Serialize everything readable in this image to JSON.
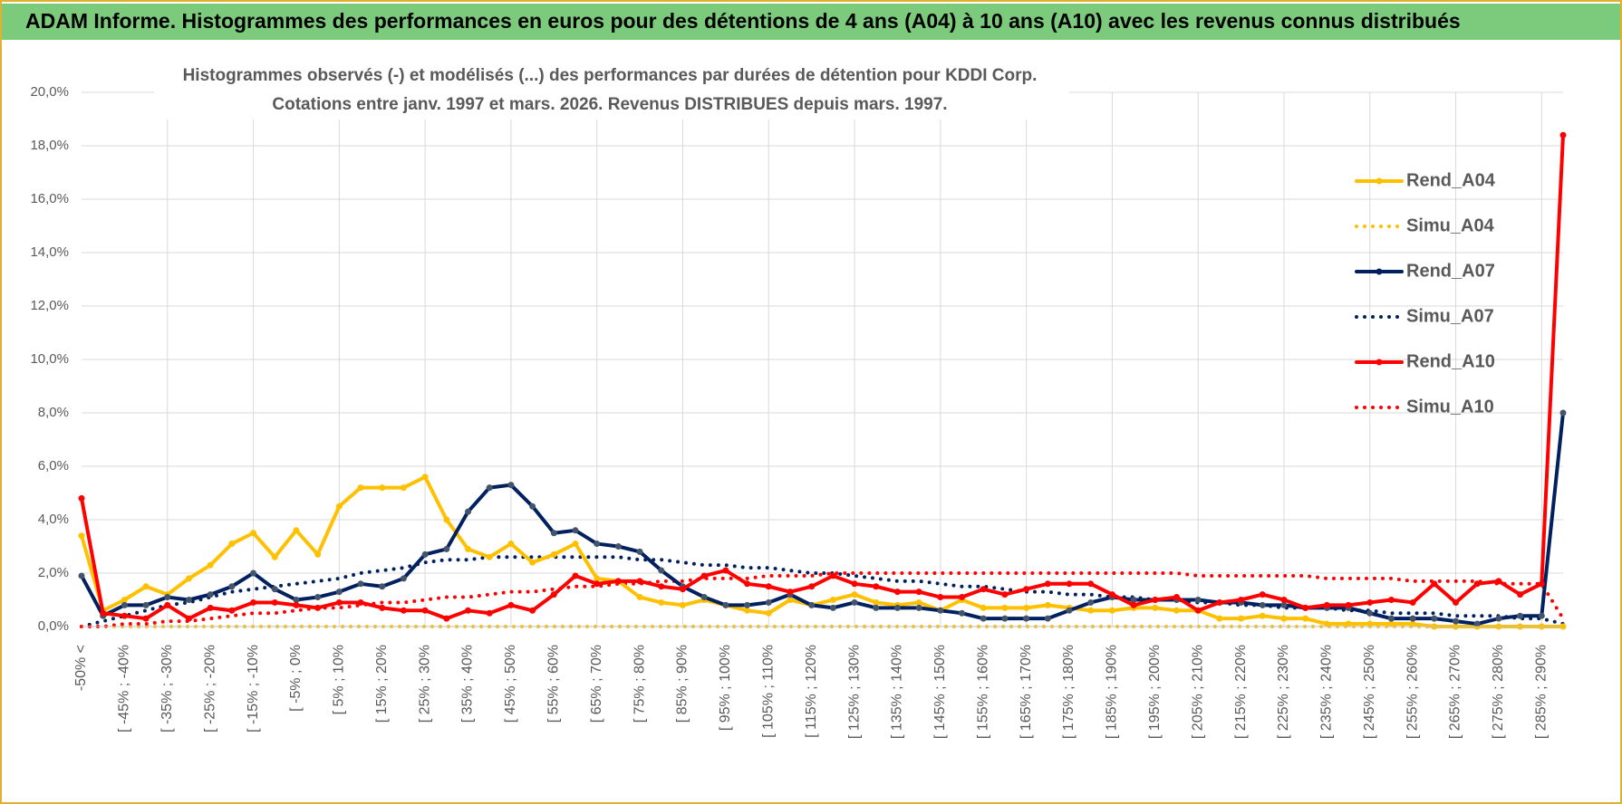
{
  "header": {
    "title": "ADAM Informe. Histogrammes des performances en euros pour des détentions de 4 ans (A04) à 10 ans (A10) avec les revenus connus distribués"
  },
  "chart_data": {
    "type": "line",
    "title": "Histogrammes observés (-) et modélisés (...) des performances par durées de détention pour KDDI Corp.",
    "subtitle": "Cotations entre janv. 1997 et mars. 2026. Revenus DISTRIBUES depuis mars. 1997.",
    "categories": [
      "-50% <",
      null,
      "[ -45% ; -40%",
      null,
      "[ -35% ; -30%",
      null,
      "[ -25% ; -20%",
      null,
      "[ -15% ; -10%",
      null,
      "[ -5% ; 0%",
      null,
      "[ 5% ; 10%",
      null,
      "[ 15% ; 20%",
      null,
      "[ 25% ; 30%",
      null,
      "[ 35% ; 40%",
      null,
      "[ 45% ; 50%",
      null,
      "[ 55% ; 60%",
      null,
      "[ 65% ; 70%",
      null,
      "[ 75% ; 80%",
      null,
      "[ 85% ; 90%",
      null,
      "[ 95% ; 100%",
      null,
      "[ 105% ; 110%",
      null,
      "[ 115% ; 120%",
      null,
      "[ 125% ; 130%",
      null,
      "[ 135% ; 140%",
      null,
      "[ 145% ; 150%",
      null,
      "[ 155% ; 160%",
      null,
      "[ 165% ; 170%",
      null,
      "[ 175% ; 180%",
      null,
      "[ 185% ; 190%",
      null,
      "[ 195% ; 200%",
      null,
      "[ 205% ; 210%",
      null,
      "[ 215% ; 220%",
      null,
      "[ 225% ; 230%",
      null,
      "[ 235% ; 240%",
      null,
      "[ 245% ; 250%",
      null,
      "[ 255% ; 260%",
      null,
      "[ 265% ; 270%",
      null,
      "[ 275% ; 280%",
      null,
      "[ 285% ; 290%",
      null
    ],
    "series": [
      {
        "name": "Rend_A04",
        "color": "#ffc000",
        "style": "solid",
        "marker": true,
        "values": [
          3.4,
          0.6,
          1.0,
          1.5,
          1.2,
          1.8,
          2.3,
          3.1,
          3.5,
          2.6,
          3.6,
          2.7,
          4.5,
          5.2,
          5.2,
          5.2,
          5.6,
          4.0,
          2.9,
          2.6,
          3.1,
          2.4,
          2.7,
          3.1,
          1.8,
          1.7,
          1.1,
          0.9,
          0.8,
          1.0,
          0.8,
          0.6,
          0.5,
          1.0,
          0.8,
          1.0,
          1.2,
          0.9,
          0.8,
          0.9,
          0.6,
          1.0,
          0.7,
          0.7,
          0.7,
          0.8,
          0.7,
          0.6,
          0.6,
          0.7,
          0.7,
          0.6,
          0.6,
          0.3,
          0.3,
          0.4,
          0.3,
          0.3,
          0.1,
          0.1,
          0.1,
          0.1,
          0.1,
          0.0,
          0.0,
          0.0,
          0.0,
          0.0,
          0.0,
          0.0
        ]
      },
      {
        "name": "Simu_A04",
        "color": "#ffc000",
        "style": "dotted",
        "marker": false,
        "values": [
          0,
          0,
          0,
          0,
          0,
          0,
          0,
          0,
          0,
          0,
          0,
          0,
          0,
          0,
          0,
          0,
          0,
          0,
          0,
          0,
          0,
          0,
          0,
          0,
          0,
          0,
          0,
          0,
          0,
          0,
          0,
          0,
          0,
          0,
          0,
          0,
          0,
          0,
          0,
          0,
          0,
          0,
          0,
          0,
          0,
          0,
          0,
          0,
          0,
          0,
          0,
          0,
          0,
          0,
          0,
          0,
          0,
          0,
          0,
          0,
          0,
          0,
          0,
          0,
          0,
          0,
          0,
          0,
          0,
          0
        ]
      },
      {
        "name": "Rend_A07",
        "color": "#002060",
        "style": "solid",
        "marker": true,
        "values": [
          1.9,
          0.4,
          0.8,
          0.8,
          1.1,
          1.0,
          1.2,
          1.5,
          2.0,
          1.4,
          1.0,
          1.1,
          1.3,
          1.6,
          1.5,
          1.8,
          2.7,
          2.9,
          4.3,
          5.2,
          5.3,
          4.5,
          3.5,
          3.6,
          3.1,
          3.0,
          2.8,
          2.1,
          1.5,
          1.1,
          0.8,
          0.8,
          0.9,
          1.2,
          0.8,
          0.7,
          0.9,
          0.7,
          0.7,
          0.7,
          0.6,
          0.5,
          0.3,
          0.3,
          0.3,
          0.3,
          0.6,
          0.9,
          1.1,
          1.0,
          1.0,
          1.0,
          1.0,
          0.9,
          0.9,
          0.8,
          0.8,
          0.7,
          0.7,
          0.7,
          0.5,
          0.3,
          0.3,
          0.3,
          0.2,
          0.1,
          0.3,
          0.4,
          0.4,
          8.0
        ]
      },
      {
        "name": "Simu_A07",
        "color": "#002060",
        "style": "dotted",
        "marker": false,
        "values": [
          0.0,
          0.2,
          0.4,
          0.6,
          0.8,
          0.9,
          1.1,
          1.3,
          1.4,
          1.5,
          1.6,
          1.7,
          1.8,
          2.0,
          2.1,
          2.2,
          2.4,
          2.5,
          2.5,
          2.6,
          2.6,
          2.6,
          2.6,
          2.6,
          2.6,
          2.6,
          2.5,
          2.5,
          2.4,
          2.3,
          2.3,
          2.2,
          2.2,
          2.1,
          2.0,
          2.0,
          1.9,
          1.8,
          1.7,
          1.7,
          1.6,
          1.5,
          1.5,
          1.4,
          1.3,
          1.3,
          1.2,
          1.2,
          1.1,
          1.1,
          1.0,
          1.0,
          0.9,
          0.9,
          0.8,
          0.8,
          0.7,
          0.7,
          0.7,
          0.6,
          0.6,
          0.5,
          0.5,
          0.5,
          0.4,
          0.4,
          0.4,
          0.3,
          0.3,
          0.1
        ]
      },
      {
        "name": "Rend_A10",
        "color": "#ff0000",
        "style": "solid",
        "marker": true,
        "values": [
          4.8,
          0.5,
          0.4,
          0.3,
          0.8,
          0.3,
          0.7,
          0.6,
          0.9,
          0.9,
          0.8,
          0.7,
          0.9,
          0.9,
          0.7,
          0.6,
          0.6,
          0.3,
          0.6,
          0.5,
          0.8,
          0.6,
          1.2,
          1.9,
          1.6,
          1.7,
          1.7,
          1.5,
          1.4,
          1.9,
          2.1,
          1.6,
          1.5,
          1.3,
          1.5,
          1.9,
          1.6,
          1.5,
          1.3,
          1.3,
          1.1,
          1.1,
          1.4,
          1.2,
          1.4,
          1.6,
          1.6,
          1.6,
          1.2,
          0.8,
          1.0,
          1.1,
          0.6,
          0.9,
          1.0,
          1.2,
          1.0,
          0.7,
          0.8,
          0.8,
          0.9,
          1.0,
          0.9,
          1.6,
          0.9,
          1.6,
          1.7,
          1.2,
          1.6,
          18.4
        ]
      },
      {
        "name": "Simu_A10",
        "color": "#ff0000",
        "style": "dotted",
        "marker": false,
        "values": [
          0.0,
          0.0,
          0.1,
          0.1,
          0.2,
          0.2,
          0.3,
          0.4,
          0.5,
          0.5,
          0.6,
          0.7,
          0.7,
          0.8,
          0.9,
          0.9,
          1.0,
          1.1,
          1.1,
          1.2,
          1.3,
          1.3,
          1.4,
          1.5,
          1.5,
          1.6,
          1.6,
          1.7,
          1.7,
          1.8,
          1.8,
          1.8,
          1.9,
          1.9,
          1.9,
          2.0,
          2.0,
          2.0,
          2.0,
          2.0,
          2.0,
          2.0,
          2.0,
          2.0,
          2.0,
          2.0,
          2.0,
          2.0,
          2.0,
          2.0,
          2.0,
          2.0,
          1.9,
          1.9,
          1.9,
          1.9,
          1.9,
          1.9,
          1.8,
          1.8,
          1.8,
          1.8,
          1.7,
          1.7,
          1.7,
          1.7,
          1.6,
          1.6,
          1.6,
          0.3
        ]
      }
    ],
    "ylim": [
      0,
      20
    ],
    "yticks": [
      {
        "value": 0,
        "label": "0,0%"
      },
      {
        "value": 2,
        "label": "2,0%"
      },
      {
        "value": 4,
        "label": "4,0%"
      },
      {
        "value": 6,
        "label": "6,0%"
      },
      {
        "value": 8,
        "label": "8,0%"
      },
      {
        "value": 10,
        "label": "10,0%"
      },
      {
        "value": 12,
        "label": "12,0%"
      },
      {
        "value": 14,
        "label": "14,0%"
      },
      {
        "value": 16,
        "label": "16,0%"
      },
      {
        "value": 18,
        "label": "18,0%"
      },
      {
        "value": 20,
        "label": "20,0%"
      }
    ],
    "grid": true,
    "legend": "right"
  }
}
